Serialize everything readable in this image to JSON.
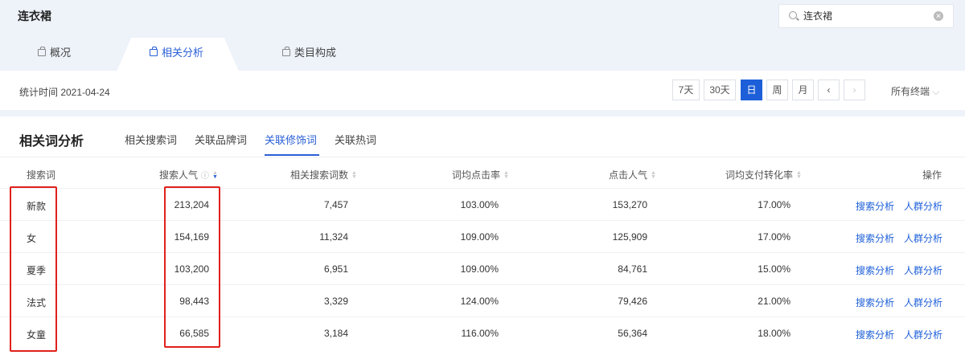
{
  "header": {
    "title": "连衣裙",
    "search_value": "连衣裙"
  },
  "tabs": [
    {
      "label": "概况"
    },
    {
      "label": "相关分析",
      "active": true
    },
    {
      "label": "类目构成"
    }
  ],
  "date_bar": {
    "stat_time": "统计时间 2021-04-24",
    "buttons": [
      "7天",
      "30天",
      "日",
      "周",
      "月"
    ],
    "active": "日",
    "terminal": "所有终端"
  },
  "section": {
    "title": "相关词分析",
    "subtabs": [
      "相关搜索词",
      "关联品牌词",
      "关联修饰词",
      "关联热词"
    ],
    "active_subtab": "关联修饰词"
  },
  "table": {
    "columns": [
      "搜索词",
      "搜索人气",
      "相关搜索词数",
      "词均点击率",
      "点击人气",
      "词均支付转化率",
      "操作"
    ],
    "sorted_column": "搜索人气",
    "sort_direction": "desc",
    "rows": [
      [
        "新款",
        "213,204",
        "7,457",
        "103.00%",
        "153,270",
        "17.00%"
      ],
      [
        "女",
        "154,169",
        "11,324",
        "109.00%",
        "125,909",
        "17.00%"
      ],
      [
        "夏季",
        "103,200",
        "6,951",
        "109.00%",
        "84,761",
        "15.00%"
      ],
      [
        "法式",
        "98,443",
        "3,329",
        "124.00%",
        "79,426",
        "21.00%"
      ],
      [
        "女童",
        "66,585",
        "3,184",
        "116.00%",
        "56,364",
        "18.00%"
      ]
    ],
    "actions": [
      "搜索分析",
      "人群分析"
    ]
  },
  "colors": {
    "accent": "#1d5fd8",
    "highlight_box": "#e0201b"
  }
}
